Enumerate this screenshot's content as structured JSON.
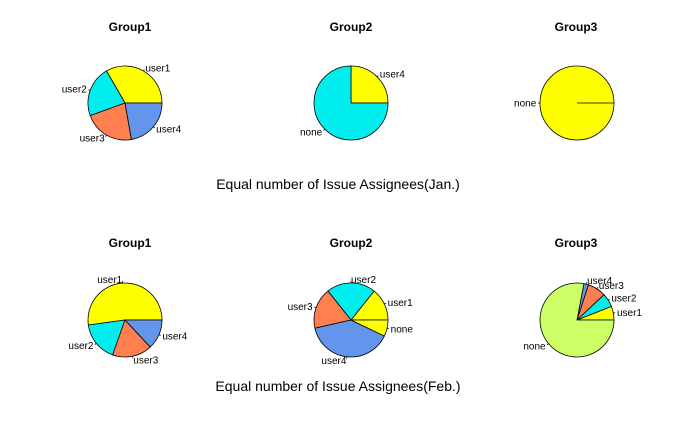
{
  "chart_data": [
    {
      "type": "pie",
      "title": "Equal number of Issue Assignees(Jan.)",
      "groups": [
        {
          "title": "Group1",
          "slices": [
            {
              "label": "user1",
              "value": 3,
              "color": "#ffff00"
            },
            {
              "label": "user2",
              "value": 2,
              "color": "#00eeee"
            },
            {
              "label": "user3",
              "value": 2,
              "color": "#ff7f50"
            },
            {
              "label": "user4",
              "value": 2,
              "color": "#6495ed"
            }
          ]
        },
        {
          "title": "Group2",
          "slices": [
            {
              "label": "user4",
              "value": 1,
              "color": "#ffff00"
            },
            {
              "label": "none",
              "value": 3,
              "color": "#00eeee"
            }
          ]
        },
        {
          "title": "Group3",
          "slices": [
            {
              "label": "none",
              "value": 1,
              "color": "#ffff00"
            }
          ]
        }
      ]
    },
    {
      "type": "pie",
      "title": "Equal number of Issue Assignees(Feb.)",
      "groups": [
        {
          "title": "Group1",
          "slices": [
            {
              "label": "user1",
              "value": 6,
              "color": "#ffff00"
            },
            {
              "label": "user2",
              "value": 2,
              "color": "#00eeee"
            },
            {
              "label": "user3",
              "value": 2,
              "color": "#ff7f50"
            },
            {
              "label": "user4",
              "value": 1.5,
              "color": "#6495ed"
            }
          ]
        },
        {
          "title": "Group2",
          "slices": [
            {
              "label": "user1",
              "value": 4,
              "color": "#ffff00"
            },
            {
              "label": "user2",
              "value": 6,
              "color": "#00eeee"
            },
            {
              "label": "user3",
              "value": 5,
              "color": "#ff7f50"
            },
            {
              "label": "user4",
              "value": 11,
              "color": "#6495ed"
            },
            {
              "label": "none",
              "value": 2,
              "color": "#ffff00"
            }
          ]
        },
        {
          "title": "Group3",
          "slices": [
            {
              "label": "user1",
              "value": 3,
              "color": "#ffff00"
            },
            {
              "label": "user2",
              "value": 3,
              "color": "#00eeee"
            },
            {
              "label": "user3",
              "value": 4,
              "color": "#ff7f50"
            },
            {
              "label": "user4",
              "value": 1,
              "color": "#6495ed"
            },
            {
              "label": "none",
              "value": 39,
              "color": "#ccff66"
            }
          ]
        }
      ]
    }
  ]
}
